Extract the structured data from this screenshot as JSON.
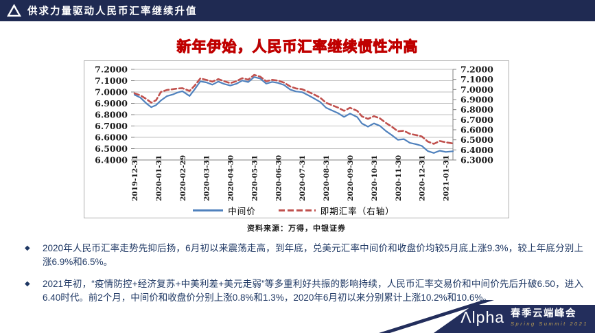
{
  "header": {
    "title": "供求力量驱动人民币汇率继续升值"
  },
  "slide": {
    "chart_title": "新年伊始，人民币汇率继续惯性冲高",
    "source": "资料来源：万得，中银证券",
    "bullets": [
      {
        "marker": "◆",
        "text": "2020年人民币汇率走势先抑后扬，6月初以来震荡走高，到年底，兑美元汇率中间价和收盘价均较5月底上涨9.3%，较上年底分别上涨6.9%和6.5%。"
      },
      {
        "marker": "◆",
        "text": "2021年初，“疫情防控+经济复苏+中美利差+美元走弱”等多重利好共振的影响持续，人民币汇率交易价和中间价先后升破6.50，进入6.40时代。前2个月，中间价和收盘价分别上涨0.8%和1.3%，2020年6月初以来分别累计上涨10.2%和10.6%。"
      }
    ]
  },
  "chart_data": {
    "type": "line",
    "title": "新年伊始，人民币汇率继续惯性冲高",
    "grid": true,
    "legend_position": "bottom",
    "x_domain": [
      0,
      13.3
    ],
    "x_tick_labels": [
      "2019-12-31",
      "2020-01-31",
      "2020-02-29",
      "2020-03-31",
      "2020-04-30",
      "2020-05-31",
      "2020-06-30",
      "2020-07-31",
      "2020-08-31",
      "2020-09-30",
      "2020-10-31",
      "2020-11-30",
      "2020-12-31",
      "2021-01-31"
    ],
    "left_axis": {
      "min": 6.4,
      "max": 7.2,
      "ticks": [
        "7.2000",
        "7.1000",
        "7.0000",
        "6.9000",
        "6.8000",
        "6.7000",
        "6.6000",
        "6.5000",
        "6.4000"
      ]
    },
    "right_axis": {
      "min": 6.3,
      "max": 7.2,
      "ticks": [
        "7.2000",
        "7.1000",
        "7.0000",
        "6.9000",
        "6.8000",
        "6.7000",
        "6.6000",
        "6.5000",
        "6.4000",
        "6.3000"
      ]
    },
    "series": [
      {
        "name": "中间价",
        "axis": "left",
        "color": "#4F81BD",
        "style": "solid",
        "t": [
          0,
          0.25,
          0.5,
          0.7,
          0.9,
          1.1,
          1.35,
          1.6,
          1.8,
          2.0,
          2.3,
          2.5,
          2.75,
          3.0,
          3.25,
          3.5,
          3.75,
          4.0,
          4.25,
          4.5,
          4.75,
          5.0,
          5.25,
          5.5,
          5.75,
          6.0,
          6.25,
          6.5,
          6.75,
          7.0,
          7.25,
          7.5,
          7.75,
          8.0,
          8.2,
          8.5,
          8.75,
          9.0,
          9.3,
          9.5,
          9.75,
          10.0,
          10.25,
          10.5,
          10.75,
          11.0,
          11.25,
          11.5,
          11.75,
          12.0,
          12.25,
          12.5,
          12.75,
          13.0,
          13.3
        ],
        "values": [
          6.976,
          6.95,
          6.899,
          6.866,
          6.884,
          6.925,
          6.963,
          6.978,
          6.996,
          7.007,
          6.965,
          7.02,
          7.094,
          7.085,
          7.065,
          7.092,
          7.071,
          7.057,
          7.072,
          7.101,
          7.088,
          7.132,
          7.119,
          7.074,
          7.089,
          7.08,
          7.061,
          7.022,
          7.004,
          6.999,
          6.972,
          6.943,
          6.913,
          6.861,
          6.842,
          6.814,
          6.78,
          6.81,
          6.779,
          6.722,
          6.694,
          6.723,
          6.701,
          6.656,
          6.619,
          6.578,
          6.584,
          6.551,
          6.54,
          6.525,
          6.478,
          6.462,
          6.482,
          6.471,
          6.477
        ]
      },
      {
        "name": "即期汇率（右轴）",
        "axis": "right",
        "color": "#C0504D",
        "style": "dashed",
        "t": [
          0,
          0.25,
          0.5,
          0.7,
          0.9,
          1.1,
          1.35,
          1.6,
          1.8,
          2.0,
          2.3,
          2.5,
          2.75,
          3.0,
          3.25,
          3.5,
          3.75,
          4.0,
          4.25,
          4.5,
          4.75,
          5.0,
          5.25,
          5.5,
          5.75,
          6.0,
          6.25,
          6.5,
          6.75,
          7.0,
          7.25,
          7.5,
          7.75,
          8.0,
          8.2,
          8.5,
          8.75,
          9.0,
          9.3,
          9.5,
          9.75,
          10.0,
          10.25,
          10.5,
          10.75,
          11.0,
          11.25,
          11.5,
          11.75,
          12.0,
          12.25,
          12.5,
          12.75,
          13.0,
          13.3
        ],
        "values": [
          6.963,
          6.941,
          6.905,
          6.869,
          6.893,
          6.975,
          6.995,
          7.003,
          7.01,
          7.013,
          6.985,
          7.035,
          7.11,
          7.095,
          7.078,
          7.103,
          7.082,
          7.063,
          7.082,
          7.112,
          7.098,
          7.145,
          7.128,
          7.082,
          7.096,
          7.088,
          7.068,
          7.03,
          7.01,
          7.003,
          6.978,
          6.95,
          6.92,
          6.868,
          6.848,
          6.82,
          6.788,
          6.818,
          6.788,
          6.733,
          6.708,
          6.735,
          6.713,
          6.668,
          6.63,
          6.585,
          6.59,
          6.56,
          6.548,
          6.533,
          6.483,
          6.46,
          6.488,
          6.476,
          6.464
        ]
      }
    ]
  },
  "footer": {
    "logo": "Λlpha",
    "event_cn": "春季云端峰会",
    "event_en": "Spring Summit 2021"
  },
  "colors": {
    "header_bg": "#1F2A52",
    "title_fill": "#1F3864",
    "title_outline": "#C00000",
    "bullet_text": "#1F3864",
    "line_blue": "#4F81BD",
    "line_red": "#C0504D",
    "banner_bg": "#232E5C",
    "banner_gold": "#BFA054",
    "gridline": "#BFBFBF",
    "axis_line": "#808080"
  }
}
